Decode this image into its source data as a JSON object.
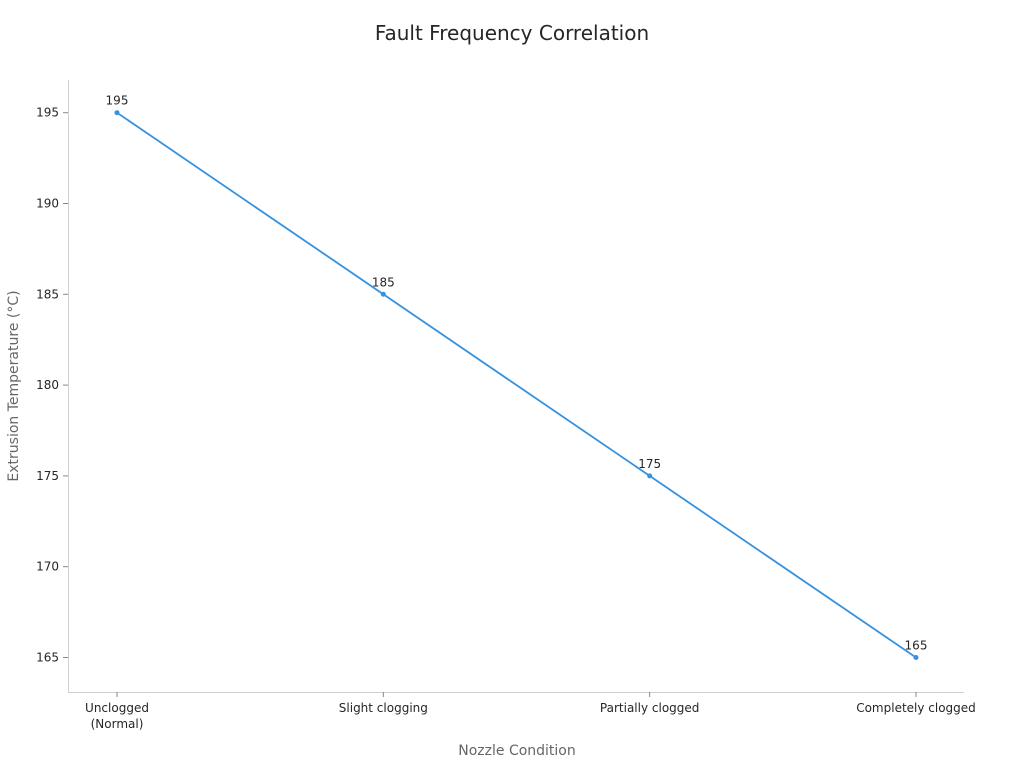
{
  "chart_data": {
    "type": "line",
    "title": "Fault Frequency Correlation",
    "xlabel": "Nozzle Condition",
    "ylabel": "Extrusion Temperature (°C)",
    "categories": [
      [
        "Unclogged",
        "(Normal)"
      ],
      [
        "Slight clogging"
      ],
      [
        "Partially clogged"
      ],
      [
        "Completely clogged"
      ]
    ],
    "series": [
      {
        "values": [
          195,
          185,
          175,
          165
        ],
        "color": "#3592e0"
      }
    ],
    "data_labels": [
      "195",
      "185",
      "175",
      "165"
    ],
    "yticks": [
      165,
      170,
      175,
      180,
      185,
      190,
      195
    ],
    "ylim": [
      163.1,
      196.8
    ],
    "grid": false,
    "legend": "none"
  }
}
